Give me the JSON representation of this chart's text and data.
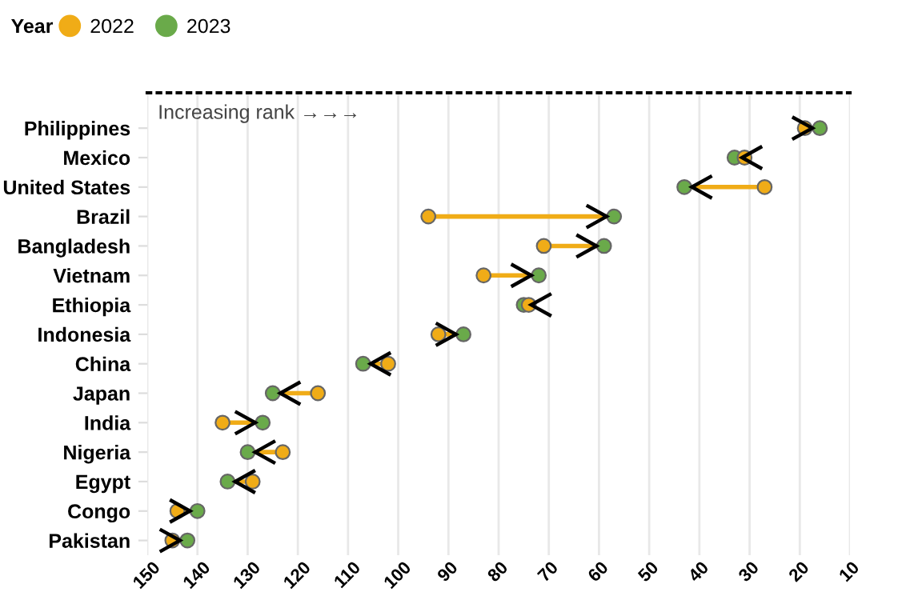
{
  "chart_data": {
    "type": "scatter",
    "orientation": "horizontal",
    "legend_title": "Year",
    "legend": "top left",
    "grid": "x",
    "marker": "circle",
    "annotations": [
      "Increasing rank →→→"
    ],
    "categories": [
      "Philippines",
      "Mexico",
      "United States",
      "Brazil",
      "Bangladesh",
      "Vietnam",
      "Ethiopia",
      "Indonesia",
      "China",
      "Japan",
      "India",
      "Nigeria",
      "Egypt",
      "Congo",
      "Pakistan"
    ],
    "series": [
      {
        "name": "2022",
        "color": "#f0ac17",
        "values": [
          19,
          31,
          27,
          94,
          71,
          83,
          74,
          92,
          102,
          116,
          135,
          123,
          129,
          144,
          145
        ]
      },
      {
        "name": "2023",
        "color": "#6aaa4a",
        "values": [
          16,
          33,
          43,
          57,
          59,
          72,
          75,
          87,
          107,
          125,
          127,
          130,
          134,
          140,
          142
        ]
      }
    ],
    "xlim": [
      150,
      10
    ],
    "xticks": [
      150,
      140,
      130,
      120,
      110,
      100,
      90,
      80,
      70,
      60,
      50,
      40,
      30,
      20,
      10
    ]
  }
}
